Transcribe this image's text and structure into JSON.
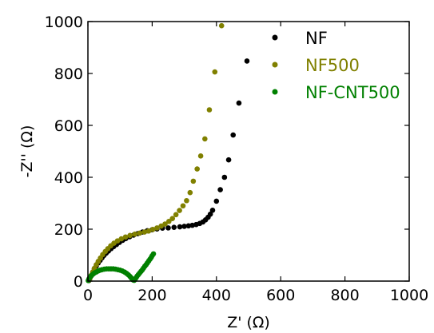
{
  "chart_data": {
    "type": "scatter",
    "xlabel": "Z' (Ω)",
    "ylabel": "-Z'' (Ω)",
    "xlim": [
      0,
      1000
    ],
    "ylim": [
      0,
      1000
    ],
    "xticks": [
      "0",
      "200",
      "400",
      "600",
      "800",
      "1000"
    ],
    "yticks": [
      "0",
      "200",
      "400",
      "600",
      "800",
      "1000"
    ],
    "grid": false,
    "legend_position": "top-right",
    "series": [
      {
        "name": "NF",
        "color": "#000000",
        "points": [
          [
            3,
            2
          ],
          [
            6,
            10
          ],
          [
            10,
            20
          ],
          [
            15,
            33
          ],
          [
            20,
            46
          ],
          [
            26,
            58
          ],
          [
            32,
            70
          ],
          [
            38,
            80
          ],
          [
            44,
            90
          ],
          [
            50,
            99
          ],
          [
            57,
            108
          ],
          [
            64,
            116
          ],
          [
            72,
            125
          ],
          [
            80,
            133
          ],
          [
            89,
            141
          ],
          [
            98,
            149
          ],
          [
            108,
            157
          ],
          [
            118,
            164
          ],
          [
            130,
            171
          ],
          [
            142,
            177
          ],
          [
            155,
            183
          ],
          [
            170,
            189
          ],
          [
            185,
            194
          ],
          [
            200,
            198
          ],
          [
            215,
            201
          ],
          [
            232,
            204
          ],
          [
            250,
            205
          ],
          [
            268,
            207
          ],
          [
            286,
            209
          ],
          [
            300,
            211
          ],
          [
            313,
            213
          ],
          [
            325,
            215
          ],
          [
            337,
            218
          ],
          [
            348,
            222
          ],
          [
            358,
            228
          ],
          [
            366,
            236
          ],
          [
            374,
            246
          ],
          [
            381,
            258
          ],
          [
            388,
            273
          ],
          [
            400,
            308
          ],
          [
            412,
            352
          ],
          [
            425,
            400
          ],
          [
            438,
            467
          ],
          [
            452,
            563
          ],
          [
            470,
            686
          ],
          [
            495,
            848
          ]
        ]
      },
      {
        "name": "NF500",
        "color": "#808000",
        "points": [
          [
            3,
            3
          ],
          [
            6,
            10
          ],
          [
            10,
            22
          ],
          [
            15,
            35
          ],
          [
            20,
            49
          ],
          [
            26,
            63
          ],
          [
            32,
            76
          ],
          [
            39,
            89
          ],
          [
            46,
            102
          ],
          [
            54,
            114
          ],
          [
            62,
            125
          ],
          [
            71,
            136
          ],
          [
            81,
            146
          ],
          [
            92,
            155
          ],
          [
            104,
            163
          ],
          [
            117,
            170
          ],
          [
            131,
            176
          ],
          [
            146,
            181
          ],
          [
            161,
            185
          ],
          [
            176,
            189
          ],
          [
            189,
            193
          ],
          [
            202,
            199
          ],
          [
            215,
            205
          ],
          [
            228,
            212
          ],
          [
            240,
            220
          ],
          [
            252,
            230
          ],
          [
            263,
            241
          ],
          [
            274,
            256
          ],
          [
            285,
            272
          ],
          [
            296,
            290
          ],
          [
            307,
            310
          ],
          [
            318,
            341
          ],
          [
            328,
            385
          ],
          [
            340,
            432
          ],
          [
            351,
            482
          ],
          [
            364,
            548
          ],
          [
            378,
            660
          ],
          [
            395,
            806
          ],
          [
            416,
            984
          ]
        ]
      },
      {
        "name": "NF-CNT500",
        "color": "#008000",
        "points": [
          [
            1,
            2
          ],
          [
            3,
            8
          ],
          [
            6,
            14
          ],
          [
            10,
            20
          ],
          [
            15,
            26
          ],
          [
            20,
            31
          ],
          [
            26,
            35
          ],
          [
            32,
            39
          ],
          [
            38,
            42
          ],
          [
            44,
            44
          ],
          [
            51,
            46
          ],
          [
            58,
            47
          ],
          [
            65,
            47
          ],
          [
            72,
            47
          ],
          [
            79,
            47
          ],
          [
            86,
            46
          ],
          [
            93,
            44
          ],
          [
            100,
            42
          ],
          [
            107,
            39
          ],
          [
            114,
            35
          ],
          [
            120,
            30
          ],
          [
            126,
            24
          ],
          [
            131,
            18
          ],
          [
            135,
            12
          ],
          [
            138,
            8
          ],
          [
            141,
            4
          ],
          [
            144,
            3
          ],
          [
            147,
            8
          ],
          [
            150,
            13
          ],
          [
            153,
            19
          ],
          [
            157,
            25
          ],
          [
            161,
            31
          ],
          [
            165,
            37
          ],
          [
            169,
            43
          ],
          [
            173,
            50
          ],
          [
            177,
            57
          ],
          [
            181,
            63
          ],
          [
            185,
            70
          ],
          [
            189,
            77
          ],
          [
            193,
            84
          ],
          [
            197,
            91
          ],
          [
            200,
            98
          ],
          [
            204,
            105
          ]
        ]
      }
    ]
  }
}
